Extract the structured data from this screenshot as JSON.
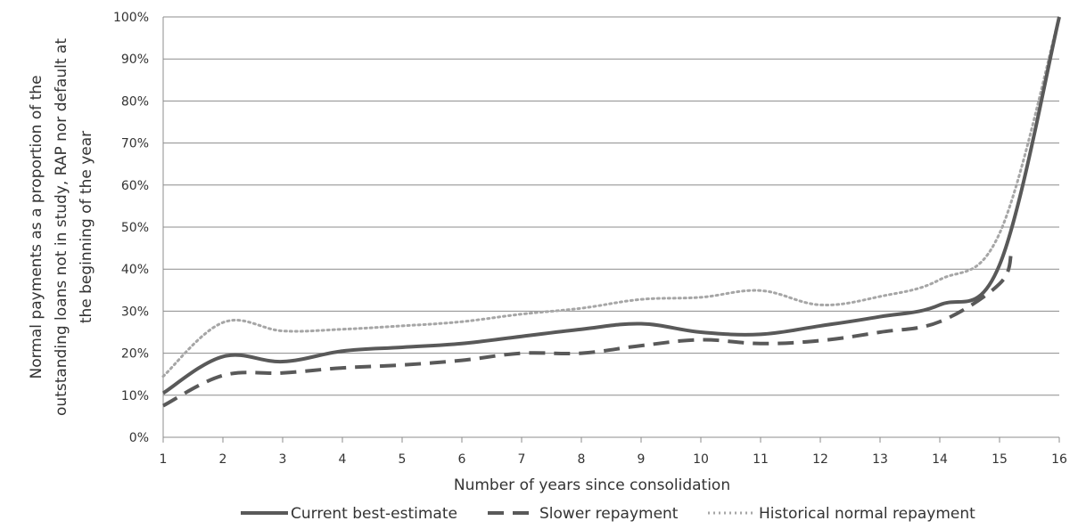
{
  "chart_data": {
    "type": "line",
    "title": "",
    "xlabel": "Number of years since consolidation",
    "ylabel_lines": [
      "Normal payments as a proportion of the",
      "outstanding loans not in study, RAP nor default at",
      "the beginning of the year"
    ],
    "x": [
      1,
      2,
      3,
      4,
      5,
      6,
      7,
      8,
      9,
      10,
      11,
      12,
      13,
      14,
      15,
      16
    ],
    "x_tick_labels": [
      "1",
      "2",
      "3",
      "4",
      "5",
      "6",
      "7",
      "8",
      "9",
      "10",
      "11",
      "12",
      "13",
      "14",
      "15",
      "16"
    ],
    "ylim": [
      0,
      100
    ],
    "y_ticks": [
      0,
      10,
      20,
      30,
      40,
      50,
      60,
      70,
      80,
      90,
      100
    ],
    "y_tick_labels": [
      "0%",
      "10%",
      "20%",
      "30%",
      "40%",
      "50%",
      "60%",
      "70%",
      "80%",
      "90%",
      "100%"
    ],
    "grid": true,
    "legend_position": "bottom",
    "series": [
      {
        "name": "Current best-estimate",
        "style": "solid",
        "color": "#595959",
        "points": [
          [
            1,
            10.5
          ],
          [
            2,
            19.2
          ],
          [
            3,
            18.0
          ],
          [
            4,
            20.5
          ],
          [
            5,
            21.4
          ],
          [
            6,
            22.3
          ],
          [
            7,
            24.0
          ],
          [
            8,
            25.7
          ],
          [
            9,
            27.0
          ],
          [
            10,
            25.0
          ],
          [
            11,
            24.5
          ],
          [
            12,
            26.5
          ],
          [
            13,
            28.7
          ],
          [
            14,
            31.5
          ],
          [
            15,
            41.0
          ],
          [
            16,
            100.0
          ]
        ]
      },
      {
        "name": "Slower repayment",
        "style": "dashed",
        "color": "#595959",
        "points": [
          [
            1,
            7.5
          ],
          [
            2,
            14.7
          ],
          [
            3,
            15.3
          ],
          [
            4,
            16.5
          ],
          [
            5,
            17.2
          ],
          [
            6,
            18.3
          ],
          [
            7,
            20.0
          ],
          [
            8,
            20.0
          ],
          [
            9,
            21.8
          ],
          [
            10,
            23.2
          ],
          [
            11,
            22.3
          ],
          [
            12,
            23.0
          ],
          [
            13,
            25.0
          ],
          [
            14,
            27.5
          ],
          [
            15,
            36.5
          ],
          [
            15.2,
            44.0
          ]
        ]
      },
      {
        "name": "Historical normal repayment",
        "style": "dotted",
        "color": "#a6a6a6",
        "points": [
          [
            1,
            14.5
          ],
          [
            2,
            27.3
          ],
          [
            3,
            25.3
          ],
          [
            4,
            25.7
          ],
          [
            5,
            26.5
          ],
          [
            6,
            27.5
          ],
          [
            7,
            29.3
          ],
          [
            8,
            30.7
          ],
          [
            9,
            32.8
          ],
          [
            10,
            33.3
          ],
          [
            11,
            34.9
          ],
          [
            12,
            31.5
          ],
          [
            13,
            33.5
          ],
          [
            14,
            37.5
          ],
          [
            15,
            48.5
          ],
          [
            16,
            100.0
          ]
        ]
      }
    ]
  }
}
